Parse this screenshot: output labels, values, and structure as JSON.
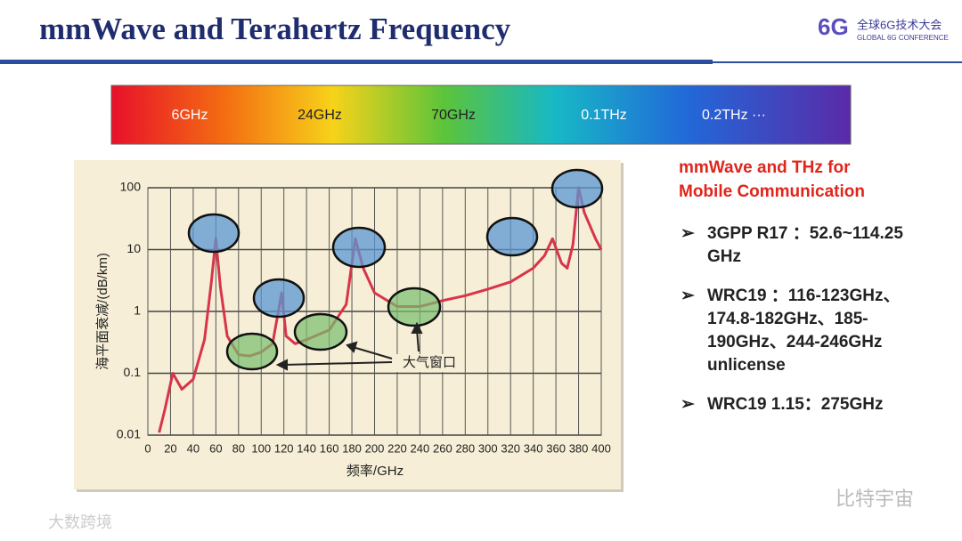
{
  "slide": {
    "title": "mmWave and Terahertz Frequency",
    "logo_main": "全球6G技术大会",
    "logo_sub": "GLOBAL 6G CONFERENCE",
    "spectrum": [
      "6GHz",
      "24GHz",
      "70GHz",
      "0.1THz",
      "0.2THz ···"
    ],
    "heading": [
      "mmWave and THz for",
      "Mobile Communication"
    ],
    "bullets": [
      "3GPP R17 ：52.6~114.25 GHz",
      "WRC19 ：116-123GHz、174.8-182GHz、185-190GHz、244-246GHz unlicense",
      "WRC19 1.15：275GHz"
    ],
    "watermark_right": "比特宇宙",
    "watermark_left": "大数跨境"
  },
  "chart_data": {
    "type": "line",
    "x_label": "频率/GHz",
    "y_label": "海平面衰减/(dB/km)",
    "annotation": "大气窗口",
    "x": [
      10,
      15,
      22,
      30,
      40,
      50,
      56,
      60,
      64,
      70,
      80,
      90,
      100,
      110,
      118,
      122,
      130,
      140,
      160,
      175,
      183,
      190,
      200,
      220,
      240,
      260,
      280,
      300,
      320,
      340,
      350,
      357,
      365,
      370,
      375,
      380,
      385,
      395,
      400
    ],
    "series": [
      {
        "color": "#d8344a",
        "values": [
          0.011,
          0.026,
          0.1,
          0.055,
          0.08,
          0.35,
          3,
          15,
          2.5,
          0.4,
          0.2,
          0.19,
          0.22,
          0.3,
          2,
          0.4,
          0.3,
          0.35,
          0.5,
          1.3,
          15,
          5,
          2,
          1.2,
          1.2,
          1.5,
          1.8,
          2.3,
          3,
          5,
          8,
          15,
          6,
          5,
          12,
          100,
          40,
          15,
          10
        ]
      }
    ],
    "xlim": [
      0,
      400
    ],
    "xticks": [
      0,
      20,
      40,
      60,
      80,
      100,
      120,
      140,
      160,
      180,
      200,
      220,
      240,
      260,
      280,
      300,
      320,
      340,
      360,
      380,
      400
    ],
    "ylim": [
      0.01,
      100
    ],
    "yticks": [
      0.01,
      0.1,
      1,
      10,
      100
    ],
    "y_scale": "log",
    "grid": true
  }
}
